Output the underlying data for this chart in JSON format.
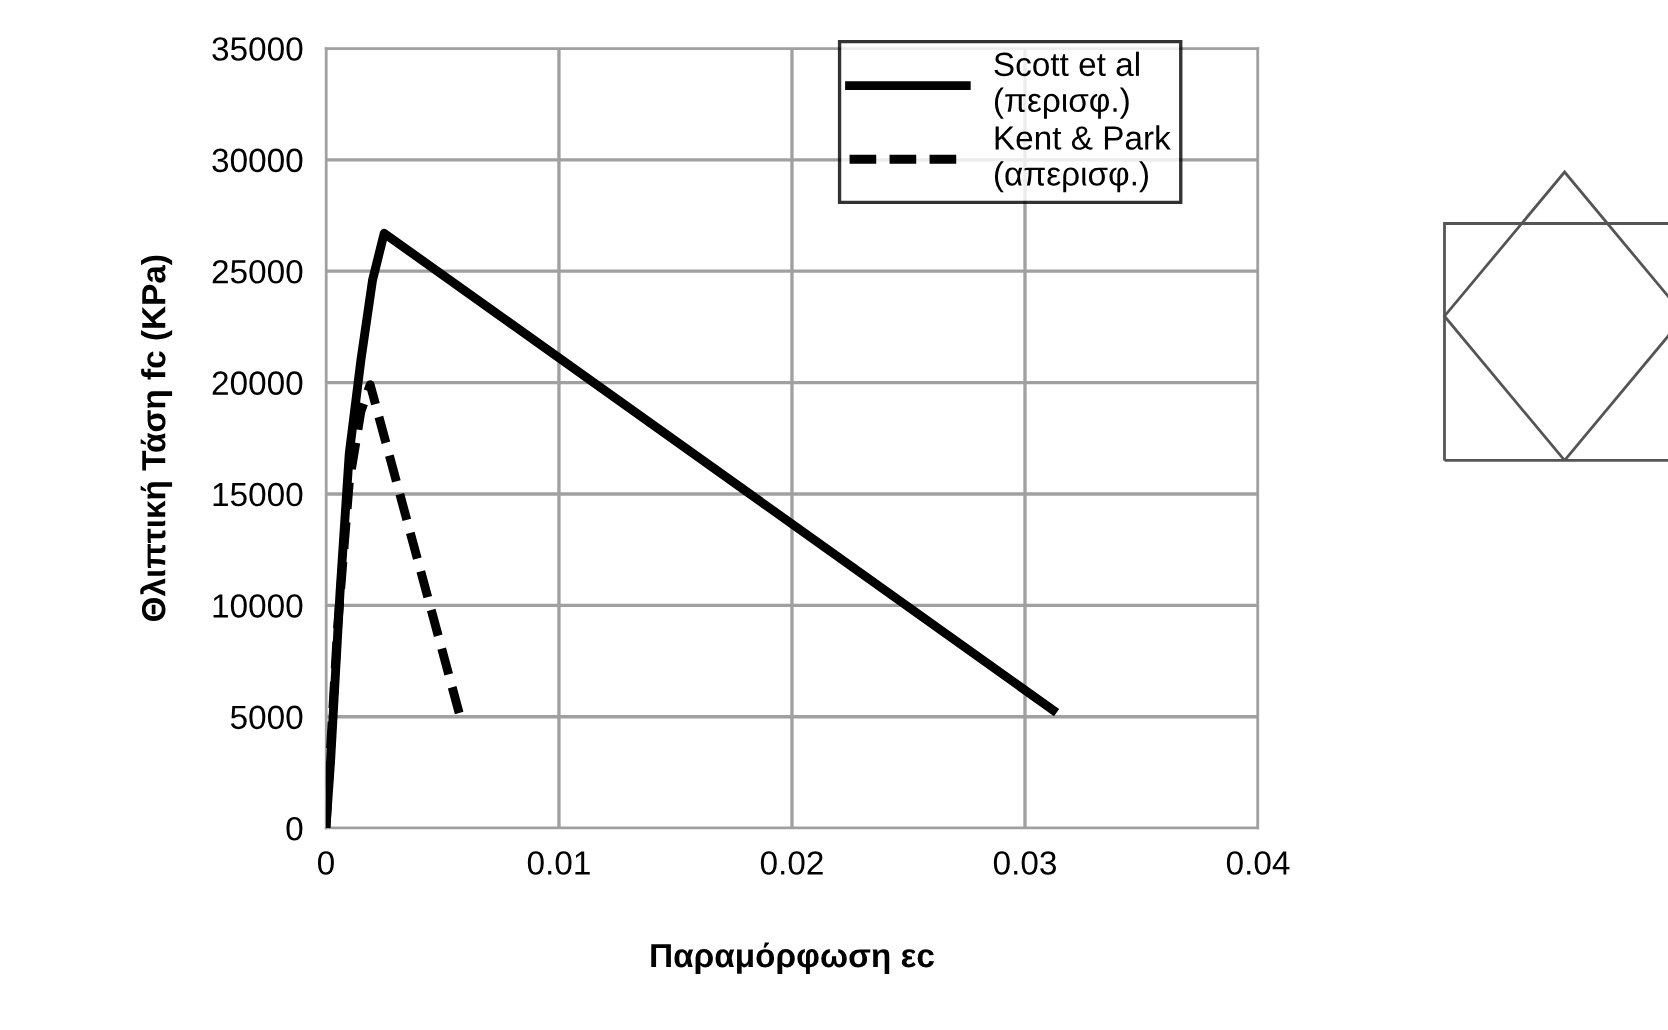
{
  "chart_data": {
    "type": "line",
    "xlabel": "Παραμόρφωση εc",
    "ylabel": "Θλιπτική Τάση fc (KPa)",
    "xlim": [
      0,
      0.04
    ],
    "xticks": [
      0,
      0.01,
      0.02,
      0.03,
      0.04
    ],
    "ylim": [
      0,
      35000
    ],
    "yticks": [
      0,
      5000,
      10000,
      15000,
      20000,
      25000,
      30000,
      35000
    ],
    "grid": true,
    "legend": "top right",
    "marker": "none",
    "series": [
      {
        "name": "Scott et al (περισφ.)",
        "color": "#000000",
        "line_style": "solid",
        "x": [
          0,
          0.0002,
          0.0006,
          0.001,
          0.0015,
          0.002,
          0.0025,
          0.0312
        ],
        "values": [
          0,
          3000,
          10500,
          16800,
          21000,
          24600,
          26700,
          5300
        ]
      },
      {
        "name": "Kent & Park (απερισφ.)",
        "color": "#000000",
        "line_style": "dashed",
        "x": [
          0,
          0.0005,
          0.001,
          0.0015,
          0.0019,
          0.0058
        ],
        "values": [
          0,
          9000,
          15500,
          18700,
          19900,
          4850
        ]
      }
    ]
  }
}
